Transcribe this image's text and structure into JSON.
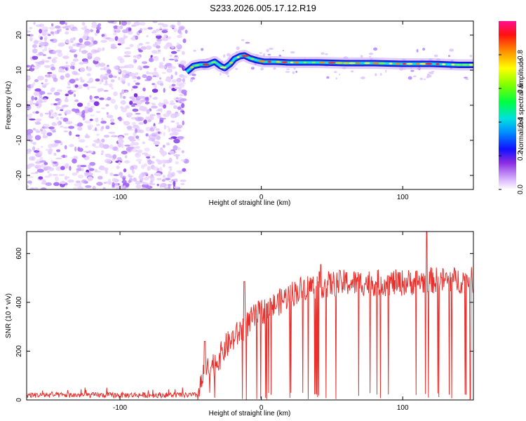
{
  "title": "S233.2026.005.17.12.R19",
  "chart_data": [
    {
      "type": "heatmap",
      "name": "spectrogram",
      "xlabel": "Height of straight line (km)",
      "ylabel": "Frequency (Hz)",
      "xlim": [
        -166,
        150
      ],
      "ylim": [
        -24,
        24
      ],
      "xticks": [
        -100,
        0,
        100
      ],
      "yticks": [
        -20,
        -10,
        0,
        10,
        20
      ],
      "noise_region_x": [
        -166,
        -53
      ],
      "signal_start_x": -53,
      "ridge": {
        "x": [
          -53,
          -48,
          -43,
          -38,
          -33,
          -29,
          -26,
          -22,
          -19,
          -15,
          -12,
          -8,
          -3,
          2,
          10,
          20,
          40,
          60,
          80,
          100,
          120,
          140,
          150
        ],
        "freq": [
          9.5,
          11.2,
          11.6,
          11.6,
          12.4,
          11.2,
          10.6,
          11.8,
          13.2,
          14.0,
          14.2,
          13.4,
          12.8,
          12.4,
          12.4,
          12.2,
          12.2,
          12.0,
          12.0,
          11.8,
          11.8,
          11.5,
          11.5
        ]
      },
      "colorbar": {
        "label": "Normalized spectral amplitude",
        "range": [
          0.0,
          1.0
        ],
        "ticks": [
          "0.0",
          "0.2",
          "0.4",
          "0.6",
          "0.8"
        ],
        "tick_values": [
          0.0,
          0.2,
          0.4,
          0.6,
          0.8
        ]
      }
    },
    {
      "type": "line",
      "name": "snr",
      "xlabel": "Height of straight line (km)",
      "ylabel": "SNR (10 * v/v)",
      "xlim": [
        -166,
        150
      ],
      "ylim": [
        0,
        690
      ],
      "xticks": [
        -100,
        0,
        100
      ],
      "yticks": [
        0,
        200,
        400,
        600
      ],
      "color": "#e8312d",
      "envelope": {
        "x": [
          -166,
          -45,
          -40,
          -35,
          -30,
          -25,
          -20,
          -15,
          -10,
          -5,
          0,
          10,
          20,
          30,
          40,
          60,
          80,
          100,
          120,
          150
        ],
        "y": [
          20,
          20,
          110,
          140,
          170,
          220,
          250,
          280,
          310,
          340,
          360,
          390,
          430,
          460,
          470,
          480,
          480,
          480,
          490,
          490
        ]
      },
      "peaks": [
        {
          "x": -40,
          "y": 240
        },
        {
          "x": -12,
          "y": 485
        },
        {
          "x": 42,
          "y": 555
        },
        {
          "x": 117,
          "y": 690
        }
      ]
    }
  ]
}
